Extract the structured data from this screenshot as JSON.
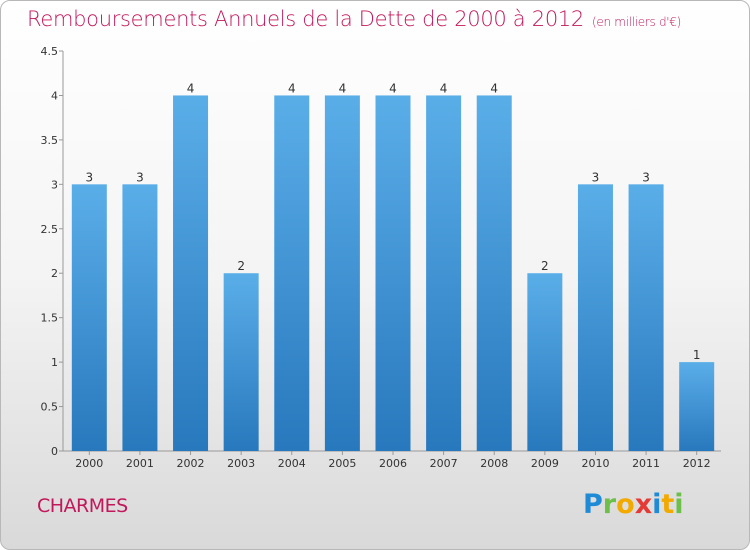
{
  "title": "Remboursements Annuels de la Dette de 2000 à 2012",
  "unit": "(en milliers d'€)",
  "city": "CHARMES",
  "logo": {
    "letters": [
      "P",
      "r",
      "o",
      "x",
      "i",
      "t",
      "i"
    ],
    "colors": [
      "#1f8ad6",
      "#6cc04a",
      "#f2a900",
      "#e53935",
      "#1f8ad6",
      "#f2a900",
      "#6cc04a"
    ]
  },
  "colors": {
    "bar_light": "#5aaee8",
    "bar_dark": "#2878bd",
    "title": "#c2185b"
  },
  "chart_data": {
    "type": "bar",
    "categories": [
      "2000",
      "2001",
      "2002",
      "2003",
      "2004",
      "2005",
      "2006",
      "2007",
      "2008",
      "2009",
      "2010",
      "2011",
      "2012"
    ],
    "values": [
      3,
      3,
      4,
      2,
      4,
      4,
      4,
      4,
      4,
      2,
      3,
      3,
      1
    ],
    "y_ticks": [
      "0",
      "0.5",
      "1",
      "1.5",
      "2",
      "2.5",
      "3",
      "3.5",
      "4",
      "4.5"
    ],
    "ylim": [
      0,
      4.5
    ],
    "grid": false
  }
}
